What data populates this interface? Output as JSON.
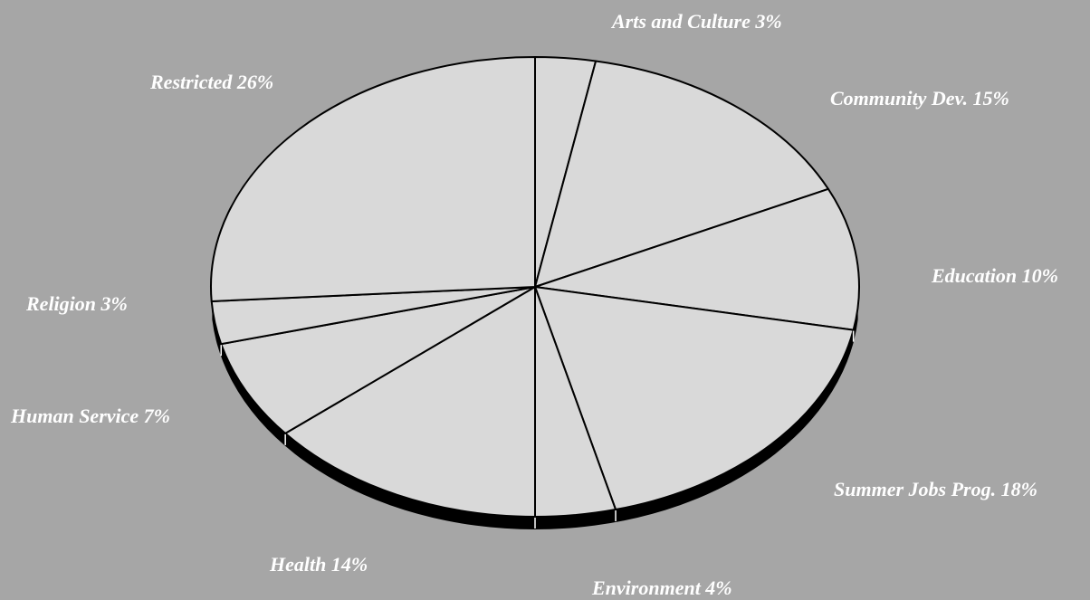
{
  "chart_data": {
    "type": "pie",
    "style": "3d-tilted",
    "title": "",
    "colors": {
      "background": "#a6a6a6",
      "slice_fill": "#d9d9d9",
      "outline": "#000000",
      "rim": "#000000",
      "label_text": "#ffffff"
    },
    "slices": [
      {
        "category": "Arts and Culture",
        "value": 3,
        "label": "Arts and Culture 3%"
      },
      {
        "category": "Community Dev.",
        "value": 15,
        "label": "Community Dev. 15%"
      },
      {
        "category": "Education",
        "value": 10,
        "label": "Education 10%"
      },
      {
        "category": "Summer Jobs Prog.",
        "value": 18,
        "label": "Summer Jobs Prog. 18%"
      },
      {
        "category": "Environment",
        "value": 4,
        "label": "Environment 4%"
      },
      {
        "category": "Health",
        "value": 14,
        "label": "Health 14%"
      },
      {
        "category": "Human Service",
        "value": 7,
        "label": "Human Service 7%"
      },
      {
        "category": "Religion",
        "value": 3,
        "label": "Religion 3%"
      },
      {
        "category": "Restricted",
        "value": 26,
        "label": "Restricted 26%"
      }
    ]
  }
}
